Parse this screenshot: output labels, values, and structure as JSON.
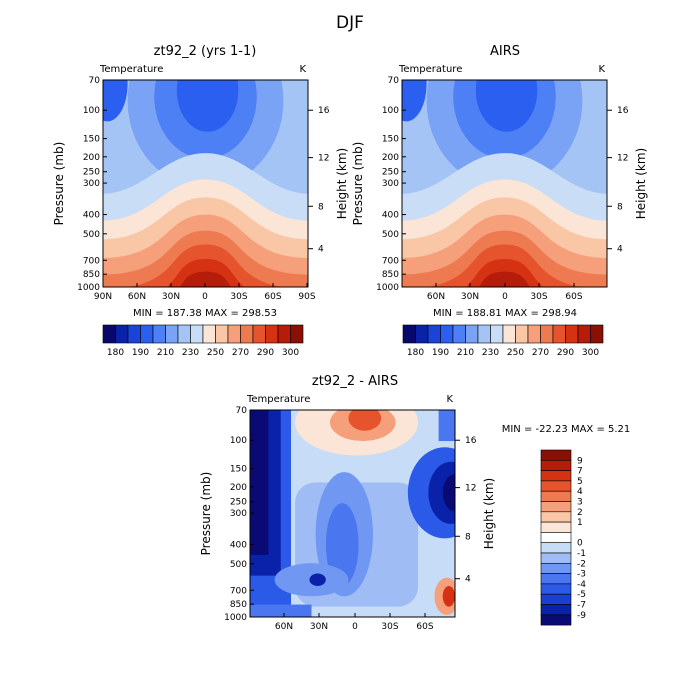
{
  "figure_title": "DJF",
  "colors": {
    "abs_palette": [
      "#08086b",
      "#0a22a8",
      "#1a44d8",
      "#2b5ff0",
      "#4d7ff5",
      "#7aa2f5",
      "#a4c4f5",
      "#c9ddf7",
      "#fbe5d6",
      "#f9c6a6",
      "#f5a07a",
      "#ee7a52",
      "#e6542e",
      "#d43212",
      "#b51d0a",
      "#8a0f04"
    ],
    "diff_palette": [
      "#0a0a75",
      "#0a22aa",
      "#1a3fd2",
      "#2b5ae8",
      "#4a77f0",
      "#7098f2",
      "#9fbcf5",
      "#c7dcf7",
      "#ffffff",
      "#fbe5d6",
      "#f9c6a6",
      "#f5a07a",
      "#ee7a52",
      "#e6542e",
      "#d43212",
      "#b51d0a",
      "#8a0f04"
    ]
  },
  "chart_data": [
    {
      "id": "panel-model",
      "type": "contour",
      "title": "zt92_2 (yrs 1-1)",
      "left_label": "Temperature",
      "units": "K",
      "ylabel": "Pressure (mb)",
      "y2label": "Height (km)",
      "y_ticks": [
        "70",
        "100",
        "150",
        "200",
        "250",
        "300",
        "400",
        "500",
        "700",
        "850",
        "1000"
      ],
      "y2_ticks": [
        "16",
        "12",
        "8",
        "4"
      ],
      "x_ticks": [
        "90N",
        "60N",
        "30N",
        "0",
        "30S",
        "60S",
        "90S"
      ],
      "min_max": "MIN = 187.38   MAX = 298.53",
      "min": 187.38,
      "max": 298.53,
      "colorbar_labels": [
        "180",
        "190",
        "210",
        "230",
        "250",
        "270",
        "290",
        "300"
      ]
    },
    {
      "id": "panel-airs",
      "type": "contour",
      "title": "AIRS",
      "left_label": "Temperature",
      "units": "K",
      "ylabel": "Pressure (mb)",
      "y2label": "Height (km)",
      "y_ticks": [
        "70",
        "100",
        "150",
        "200",
        "250",
        "300",
        "400",
        "500",
        "700",
        "850",
        "1000"
      ],
      "y2_ticks": [
        "16",
        "12",
        "8",
        "4"
      ],
      "x_ticks": [
        "60N",
        "30N",
        "0",
        "30S",
        "60S"
      ],
      "min_max": "MIN = 188.81   MAX = 298.94",
      "min": 188.81,
      "max": 298.94,
      "colorbar_labels": [
        "180",
        "190",
        "210",
        "230",
        "250",
        "270",
        "290",
        "300"
      ]
    },
    {
      "id": "panel-diff",
      "type": "contour",
      "title": "zt92_2 - AIRS",
      "left_label": "Temperature",
      "units": "K",
      "ylabel": "Pressure (mb)",
      "y2label": "Height (km)",
      "y_ticks": [
        "70",
        "100",
        "150",
        "200",
        "250",
        "300",
        "400",
        "500",
        "700",
        "850",
        "1000"
      ],
      "y2_ticks": [
        "16",
        "12",
        "8",
        "4"
      ],
      "x_ticks": [
        "60N",
        "30N",
        "0",
        "30S",
        "60S"
      ],
      "min_max": "MIN = -22.23   MAX =   5.21",
      "min": -22.23,
      "max": 5.21,
      "colorbar_labels": [
        "9",
        "7",
        "5",
        "4",
        "3",
        "2",
        "1",
        "0",
        "-1",
        "-2",
        "-3",
        "-4",
        "-5",
        "-7",
        "-9"
      ]
    }
  ]
}
